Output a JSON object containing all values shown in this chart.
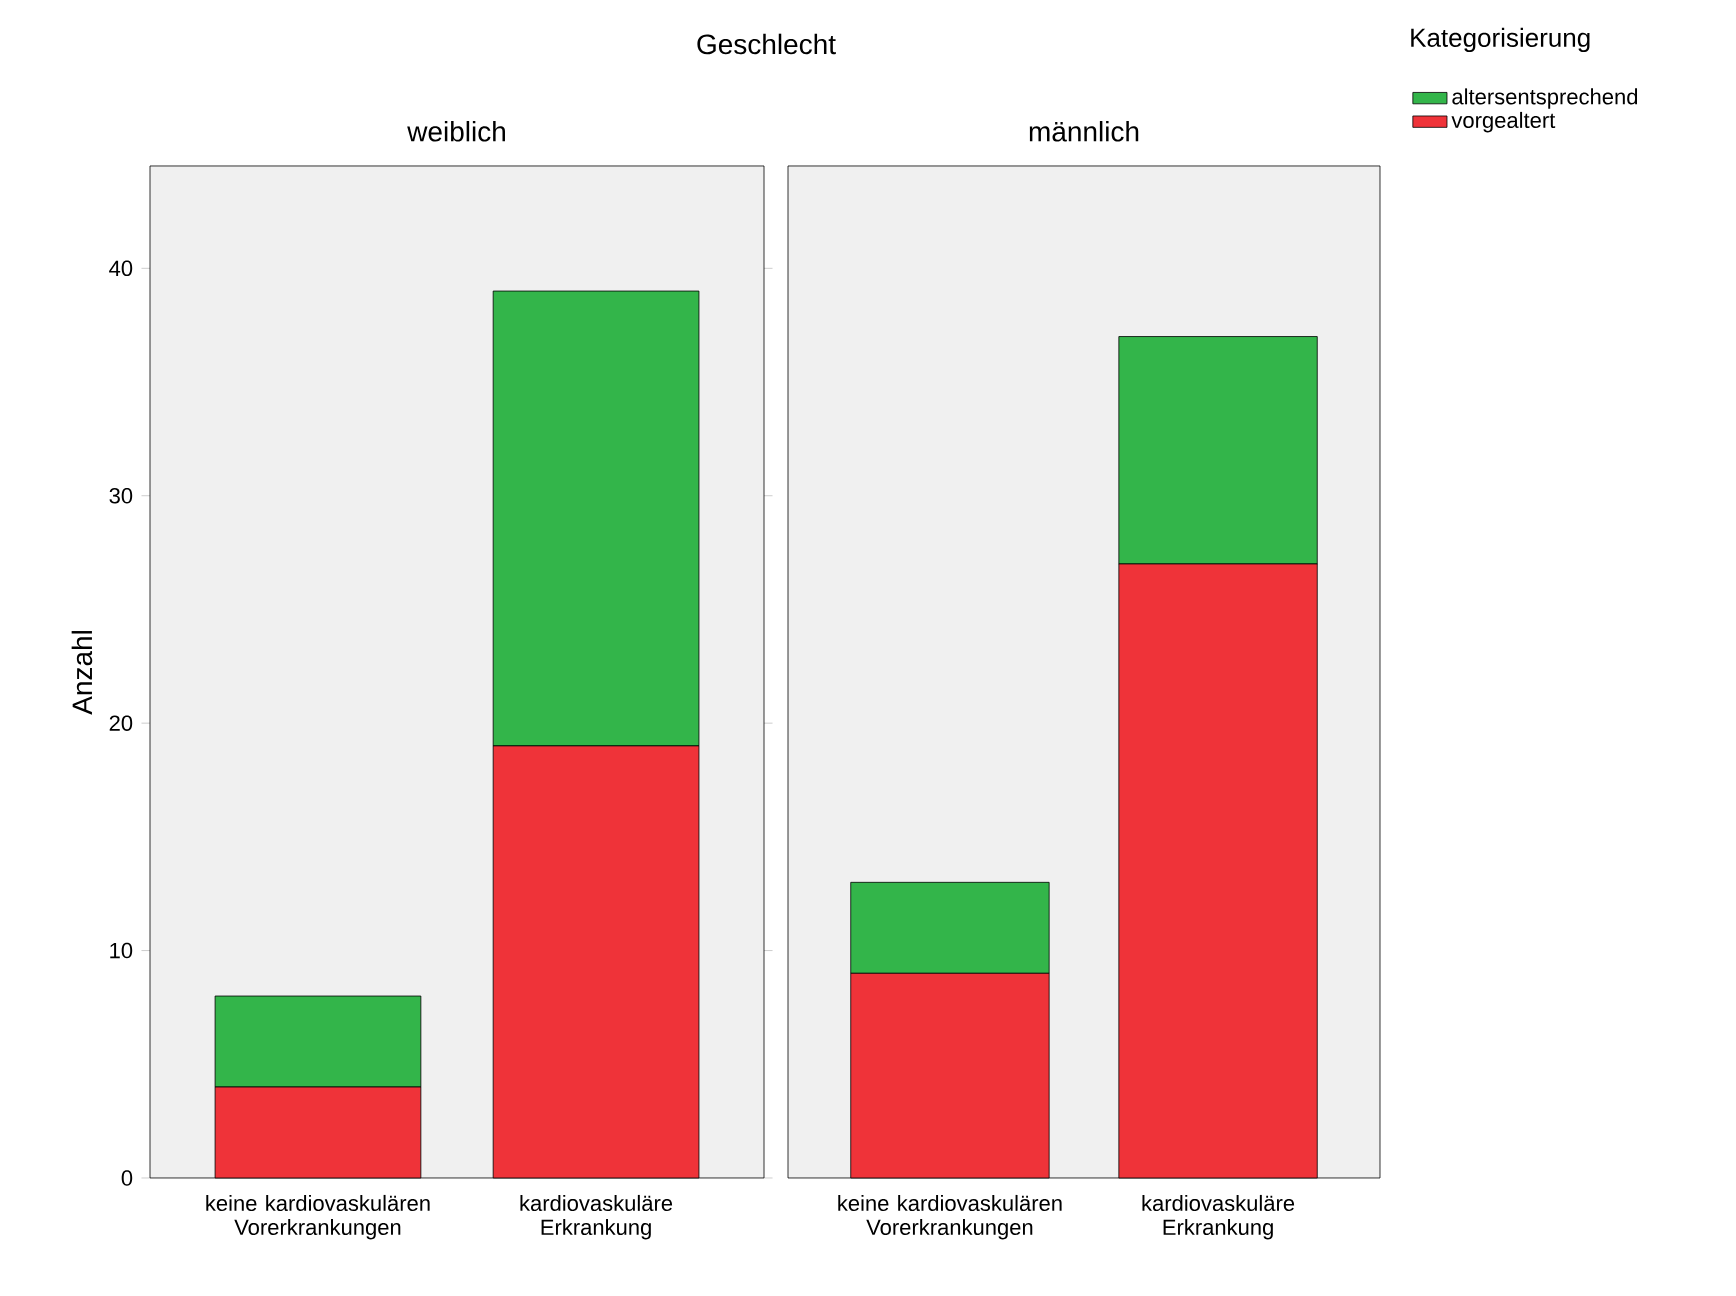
{
  "chart_data": [
    {
      "type": "bar",
      "stacked": true,
      "title": "Geschlecht",
      "subtitle": "weiblich",
      "ylabel": "Anzahl",
      "categories": [
        "keine kardiovaskulären Vorerkrankungen",
        "kardiovaskuläre Erkrankung"
      ],
      "series": [
        {
          "color": "#ef3339",
          "values": [
            4,
            19
          ]
        },
        {
          "color": "#33b54a",
          "values": [
            4,
            20
          ]
        }
      ],
      "ylim": [
        0,
        44.5
      ],
      "yticks": [
        0,
        10,
        20,
        30,
        40
      ],
      "grid": false,
      "legend": false
    },
    {
      "type": "bar",
      "stacked": true,
      "subtitle": "männlich",
      "legend_title": "Kategorisierung",
      "categories": [
        "keine kardiovaskulären Vorerkrankungen",
        "kardiovaskuläre Erkrankung"
      ],
      "series": [
        {
          "name": "vorgealtert",
          "color": "#ef3339",
          "values": [
            9,
            27
          ]
        },
        {
          "name": "altersentsprechend",
          "color": "#33b54a",
          "values": [
            4,
            10
          ]
        }
      ],
      "ylim": [
        0,
        44.5
      ],
      "tick_labels": "x",
      "grid": false,
      "legend": "top right"
    }
  ]
}
